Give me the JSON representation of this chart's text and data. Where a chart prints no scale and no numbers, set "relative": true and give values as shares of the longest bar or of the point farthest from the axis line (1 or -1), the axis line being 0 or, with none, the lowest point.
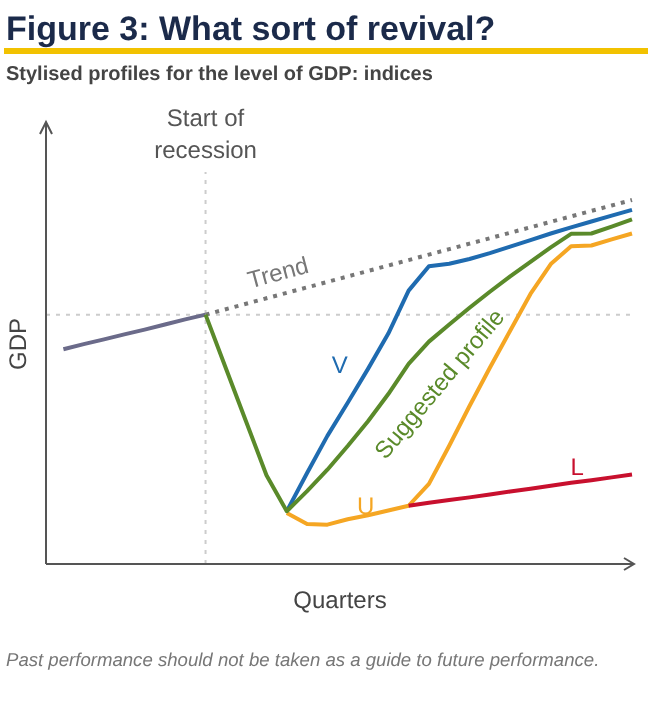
{
  "chart_data": {
    "type": "line",
    "title": "Figure 3: What sort of revival?",
    "subtitle": "Stylised profiles for the level of GDP: indices",
    "xlabel": "Quarters",
    "ylabel": "GDP",
    "relative": true,
    "marker": "none",
    "categories": [
      null,
      null,
      null,
      null,
      null,
      null,
      null,
      null,
      null,
      null,
      null,
      null,
      null,
      null,
      null,
      null,
      null,
      null,
      null,
      null,
      null,
      null,
      null,
      null,
      null,
      null,
      null,
      null,
      null
    ],
    "annotations": [
      "Start of recession",
      "Past performance should not be taken as a guide to future performance."
    ],
    "ref_lines": [
      {
        "axis": "y",
        "value": 0.685,
        "color": "#cccccc",
        "line_style": "dotted"
      }
    ],
    "series": [
      {
        "color": "#6b6b8a",
        "values": [
          0.59,
          0.604,
          0.617,
          0.631,
          0.644,
          0.658,
          0.672,
          0.685,
          null,
          null,
          null,
          null,
          null,
          null,
          null,
          null,
          null,
          null,
          null,
          null,
          null,
          null,
          null,
          null,
          null,
          null,
          null,
          null,
          null
        ]
      },
      {
        "name": "Trend",
        "color": "#777777",
        "line_style": "dotted",
        "values": [
          null,
          null,
          null,
          null,
          null,
          null,
          null,
          0.685,
          0.7,
          0.715,
          0.73,
          0.745,
          0.76,
          0.775,
          0.79,
          0.805,
          0.82,
          0.835,
          0.85,
          0.865,
          0.88,
          0.895,
          0.91,
          0.925,
          0.94,
          0.955,
          0.97,
          0.985,
          1.0
        ]
      },
      {
        "name": "V",
        "color": "#1f6bb0",
        "values": [
          null,
          null,
          null,
          null,
          null,
          null,
          null,
          null,
          null,
          null,
          null,
          0.145,
          0.25,
          0.352,
          0.443,
          0.536,
          0.633,
          0.751,
          0.818,
          0.825,
          0.838,
          0.854,
          0.872,
          0.89,
          0.908,
          0.925,
          0.941,
          0.957,
          0.973
        ]
      },
      {
        "name": "U",
        "color": "#f5a623",
        "values": [
          null,
          null,
          null,
          null,
          null,
          null,
          null,
          null,
          null,
          null,
          null,
          0.14,
          0.11,
          0.108,
          0.123,
          0.134,
          0.147,
          0.16,
          0.22,
          0.325,
          0.434,
          0.539,
          0.641,
          0.742,
          0.824,
          0.873,
          0.875,
          0.892,
          0.908
        ]
      },
      {
        "name": "L",
        "color": "#c8102e",
        "values": [
          null,
          null,
          null,
          null,
          null,
          null,
          null,
          null,
          null,
          null,
          null,
          null,
          null,
          null,
          null,
          null,
          null,
          0.16,
          0.168,
          0.176,
          0.183,
          0.191,
          0.199,
          0.207,
          0.215,
          0.223,
          0.23,
          0.238,
          0.246
        ]
      },
      {
        "name": "Suggested profile",
        "color": "#5a8a2a",
        "values": [
          null,
          null,
          null,
          null,
          null,
          null,
          null,
          0.685,
          0.538,
          0.391,
          0.244,
          0.145,
          0.2,
          0.259,
          0.324,
          0.392,
          0.467,
          0.55,
          0.611,
          0.658,
          0.704,
          0.748,
          0.79,
          0.83,
          0.87,
          0.907,
          0.908,
          0.927,
          0.947
        ]
      }
    ]
  }
}
